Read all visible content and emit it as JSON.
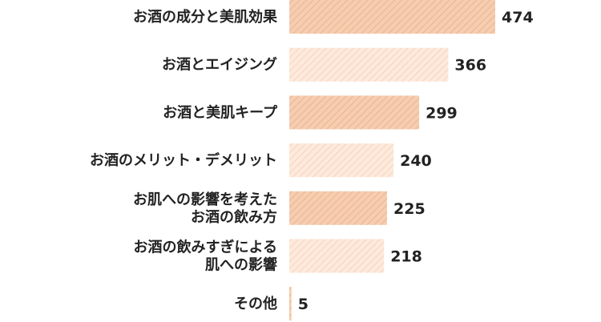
{
  "chart_data": {
    "type": "bar",
    "orientation": "horizontal",
    "categories": [
      "お酒の成分と美肌効果",
      "お酒とエイジング",
      "お酒と美肌キープ",
      "お酒のメリット・デメリット",
      "お肌への影響を考えた\nお酒の飲み方",
      "お酒の飲みすぎによる\n肌への影響",
      "その他"
    ],
    "values": [
      474,
      366,
      299,
      240,
      225,
      218,
      5
    ],
    "xlim": [
      0,
      474
    ],
    "grid": false,
    "colors": {
      "dark_fill": "#f6cdb0",
      "dark_stripe": "#e9b590",
      "light_fill": "#fdeadc",
      "light_stripe": "#f6d3ba",
      "text": "#222222"
    }
  }
}
